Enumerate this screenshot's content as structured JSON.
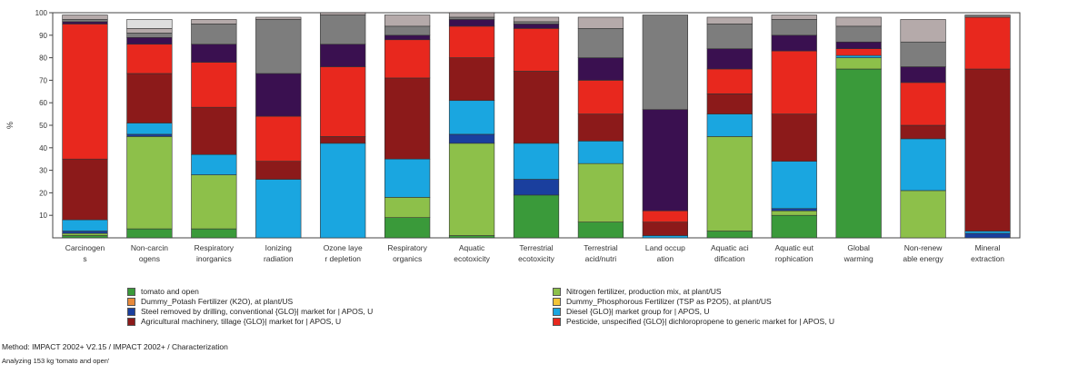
{
  "chart_data": {
    "type": "bar",
    "stacked": true,
    "ylabel": "%",
    "ylim": [
      0,
      100
    ],
    "yticks": [
      10,
      20,
      30,
      40,
      50,
      60,
      70,
      80,
      90,
      100
    ],
    "grid": false,
    "categories": [
      [
        "Carcinogen",
        "s"
      ],
      [
        "Non-carcin",
        "ogens"
      ],
      [
        "Respiratory",
        "inorganics"
      ],
      [
        "Ionizing",
        "radiation"
      ],
      [
        "Ozone laye",
        "r depletion"
      ],
      [
        "Respiratory",
        "organics"
      ],
      [
        "Aquatic",
        "ecotoxicity"
      ],
      [
        "Terrestrial",
        "ecotoxicity"
      ],
      [
        "Terrestrial",
        "acid/nutri"
      ],
      [
        "Land occup",
        "ation"
      ],
      [
        "Aquatic aci",
        "dification"
      ],
      [
        "Aquatic eut",
        "rophication"
      ],
      [
        "Global",
        "warming"
      ],
      [
        "Non-renew",
        "able energy"
      ],
      [
        "Mineral",
        "extraction"
      ]
    ],
    "series": [
      {
        "name": "tomato and open",
        "color": "#3a9a3a",
        "values": [
          1,
          4,
          4,
          0,
          0,
          9,
          1,
          19,
          7,
          0,
          3,
          10,
          75,
          0,
          0
        ]
      },
      {
        "name": "Nitrogen fertilizer, production mix, at plant/US",
        "color": "#8dc04a",
        "values": [
          1,
          41,
          24,
          0,
          0,
          9,
          41,
          0,
          26,
          0,
          42,
          2,
          5,
          21,
          0
        ]
      },
      {
        "name": "Dummy_Potash Fertilizer (K2O), at plant/US",
        "color": "#e8893a",
        "values": [
          0,
          0,
          0,
          0,
          0,
          0,
          0,
          0,
          0,
          0,
          0,
          0,
          0,
          0,
          0
        ]
      },
      {
        "name": "Dummy_Phosphorous Fertilizer (TSP as P2O5), at plant/US",
        "color": "#f2c438",
        "values": [
          0,
          0,
          0,
          0,
          0,
          0,
          0,
          0,
          0,
          0,
          0,
          0,
          0,
          0,
          0
        ]
      },
      {
        "name": "Steel removed by drilling, conventional {GLO}| market for | APOS, U",
        "color": "#1a3f9e",
        "values": [
          1,
          1,
          0,
          0,
          0,
          0,
          4,
          7,
          0,
          0,
          0,
          1,
          0,
          0,
          2
        ]
      },
      {
        "name": "Diesel {GLO}| market group for | APOS, U",
        "color": "#1aa6e0",
        "values": [
          5,
          5,
          9,
          26,
          42,
          17,
          15,
          16,
          10,
          1,
          10,
          21,
          1,
          23,
          1
        ]
      },
      {
        "name": "Agricultural machinery, tillage {GLO}| market for | APOS, U",
        "color": "#8c1a1a",
        "values": [
          27,
          22,
          21,
          8,
          3,
          36,
          19,
          32,
          12,
          6,
          9,
          21,
          0,
          6,
          72
        ]
      },
      {
        "name": "Pesticide, unspecified {GLO}| dichloropropene to generic market for | APOS, U",
        "color": "#e8281e",
        "values": [
          60,
          13,
          20,
          20,
          31,
          17,
          14,
          19,
          15,
          5,
          11,
          28,
          3,
          19,
          23
        ]
      },
      {
        "name": "",
        "color": "#3a1050",
        "values": [
          1,
          3,
          8,
          19,
          10,
          2,
          3,
          2,
          10,
          45,
          9,
          7,
          3,
          7,
          0
        ]
      },
      {
        "name": "",
        "color": "#7d7d7d",
        "values": [
          1,
          2,
          9,
          24,
          13,
          4,
          1,
          1,
          13,
          42,
          11,
          7,
          7,
          11,
          1
        ]
      },
      {
        "name": "",
        "color": "#b5aaaa",
        "values": [
          2,
          2,
          2,
          1,
          1,
          5,
          2,
          2,
          5,
          0,
          3,
          2,
          4,
          10,
          0
        ]
      },
      {
        "name": "",
        "color": "#dedede",
        "values": [
          0,
          4,
          0,
          0,
          0,
          0,
          0,
          0,
          0,
          0,
          0,
          0,
          0,
          0,
          0
        ]
      }
    ],
    "legend": [
      [
        "tomato and open",
        "Nitrogen fertilizer, production mix, at plant/US"
      ],
      [
        "Dummy_Potash Fertilizer (K2O), at plant/US",
        "Dummy_Phosphorous Fertilizer (TSP as P2O5), at plant/US"
      ],
      [
        "Steel removed by drilling, conventional {GLO}| market for | APOS, U",
        "Diesel {GLO}| market group for | APOS, U"
      ],
      [
        "Agricultural machinery, tillage {GLO}| market for | APOS, U",
        "Pesticide, unspecified {GLO}| dichloropropene to generic market for | APOS, U"
      ]
    ],
    "legend_placement": "bottom"
  },
  "footer": {
    "method": "Method: IMPACT 2002+ V2.15 / IMPACT 2002+ / Characterization",
    "analyzing": "Analyzing 153 kg 'tomato and open'"
  }
}
